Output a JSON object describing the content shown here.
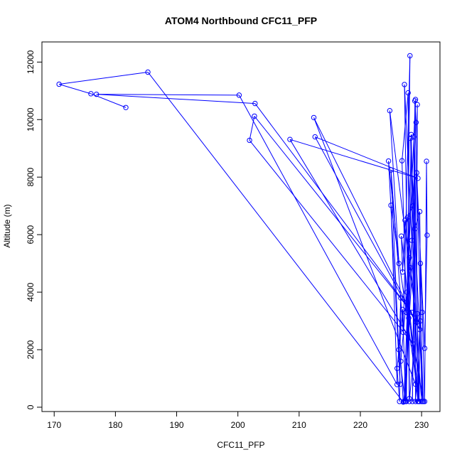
{
  "chart_data": {
    "type": "line",
    "title": "ATOM4 Northbound CFC11_PFP",
    "xlabel": "CFC11_PFP",
    "ylabel": "Altitude (m)",
    "xlim": [
      168,
      233
    ],
    "ylim": [
      -150,
      12700
    ],
    "xticks": [
      170,
      180,
      190,
      200,
      210,
      220,
      230
    ],
    "yticks": [
      0,
      2000,
      4000,
      6000,
      8000,
      10000,
      12000
    ],
    "grid": false,
    "legend": "none",
    "marker": "open-circle",
    "series": [
      {
        "color": "#0000ff",
        "points": [
          [
            181.7,
            10420
          ],
          [
            176.0,
            10900
          ],
          [
            170.8,
            11230
          ],
          [
            185.3,
            11650
          ],
          [
            227.0,
            180
          ],
          [
            226.6,
            1600
          ],
          [
            228.4,
            5800
          ],
          [
            227.2,
            11220
          ],
          [
            228.0,
            300
          ],
          [
            227.8,
            10930
          ],
          [
            226.8,
            8570
          ],
          [
            227.5,
            3300
          ],
          [
            229.0,
            10700
          ],
          [
            228.5,
            200
          ],
          [
            229.3,
            10520
          ],
          [
            229.2,
            2950
          ],
          [
            224.8,
            10310
          ],
          [
            226.3,
            5000
          ],
          [
            224.6,
            8560
          ],
          [
            226.5,
            800
          ],
          [
            225.0,
            8250
          ],
          [
            227.0,
            2600
          ],
          [
            228.1,
            12220
          ],
          [
            227.5,
            200
          ],
          [
            228.3,
            9480
          ],
          [
            229.0,
            3100
          ],
          [
            228.7,
            9400
          ],
          [
            229.6,
            200
          ],
          [
            225.0,
            7020
          ],
          [
            226.0,
            790
          ],
          [
            200.2,
            10850
          ],
          [
            176.9,
            10880
          ],
          [
            202.8,
            10560
          ],
          [
            228.4,
            3300
          ],
          [
            202.7,
            10120
          ],
          [
            201.9,
            9280
          ],
          [
            228.6,
            2200
          ],
          [
            208.5,
            9310
          ],
          [
            229.4,
            7960
          ],
          [
            212.6,
            9400
          ],
          [
            229.7,
            2700
          ],
          [
            212.4,
            10070
          ],
          [
            229.0,
            800
          ],
          [
            228.2,
            9350
          ],
          [
            230.2,
            200
          ],
          [
            229.2,
            8150
          ],
          [
            230.5,
            2050
          ],
          [
            230.9,
            5980
          ],
          [
            230.8,
            8550
          ],
          [
            230.5,
            200
          ],
          [
            230.1,
            3300
          ],
          [
            229.8,
            5000
          ],
          [
            229.6,
            200
          ],
          [
            226.7,
            5950
          ],
          [
            226.9,
            4700
          ],
          [
            227.3,
            6500
          ],
          [
            228.0,
            5200
          ],
          [
            227.1,
            200
          ],
          [
            228.9,
            6200
          ],
          [
            229.7,
            6800
          ],
          [
            230.0,
            200
          ],
          [
            227.7,
            6600
          ],
          [
            228.6,
            7000
          ],
          [
            229.4,
            200
          ],
          [
            227.6,
            4000
          ],
          [
            228.2,
            4850
          ],
          [
            227.3,
            200
          ],
          [
            226.3,
            2000
          ],
          [
            226.6,
            3800
          ],
          [
            226.4,
            200
          ],
          [
            226.0,
            1350
          ],
          [
            226.9,
            3400
          ],
          [
            227.4,
            200
          ],
          [
            229.1,
            9900
          ],
          [
            228.9,
            10650
          ],
          [
            229.0,
            200
          ],
          [
            229.8,
            3000
          ],
          [
            230.3,
            200
          ],
          [
            227.9,
            3100
          ],
          [
            228.0,
            200
          ],
          [
            229.3,
            3250
          ],
          [
            229.5,
            200
          ]
        ]
      }
    ]
  }
}
